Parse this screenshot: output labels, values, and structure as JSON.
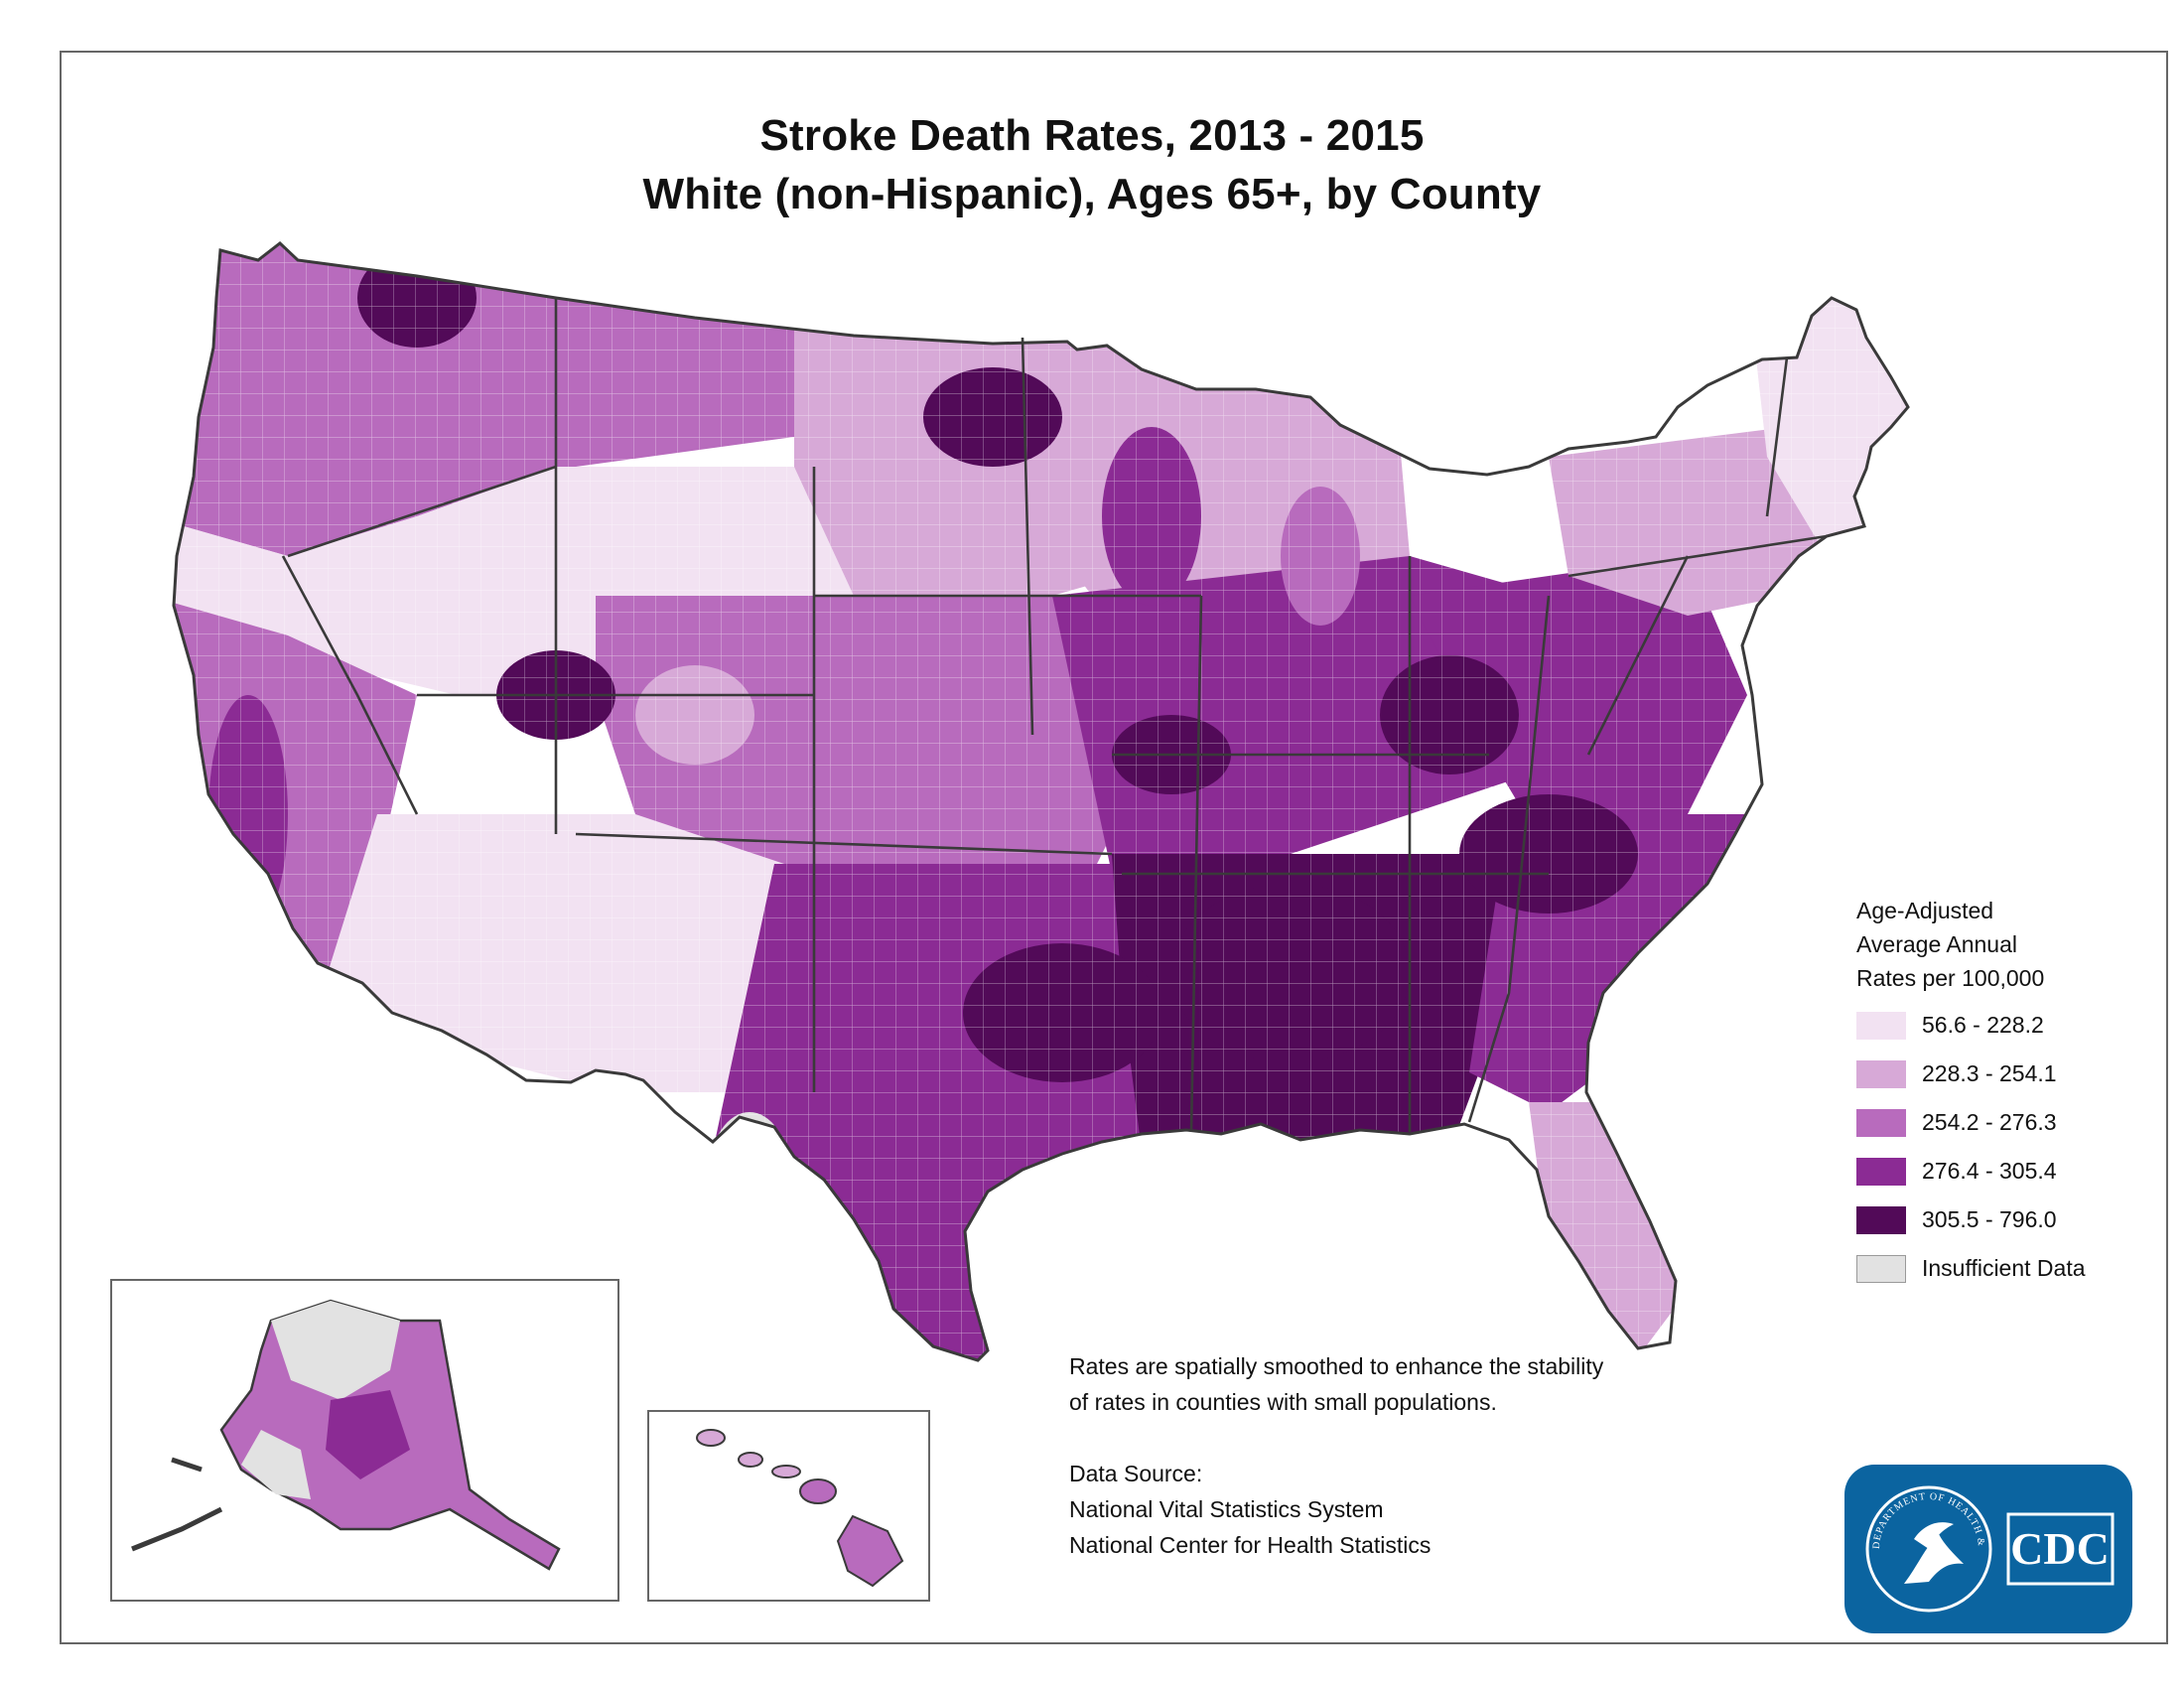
{
  "title": {
    "line1": "Stroke Death Rates, 2013 - 2015",
    "line2": "White (non-Hispanic), Ages 65+, by County"
  },
  "legend": {
    "title_lines": [
      "Age-Adjusted",
      "Average Annual",
      "Rates per 100,000"
    ],
    "classes": [
      {
        "label": "56.6 - 228.2",
        "color": "#f2e2f2"
      },
      {
        "label": "228.3 - 254.1",
        "color": "#d7a9d7"
      },
      {
        "label": "254.2 - 276.3",
        "color": "#b86bbd"
      },
      {
        "label": "276.4 - 305.4",
        "color": "#8b2b94"
      },
      {
        "label": "305.5 - 796.0",
        "color": "#520a58"
      },
      {
        "label": "Insufficient Data",
        "color": "#e2e2e2"
      }
    ]
  },
  "note": {
    "smoothing": "Rates are spatially smoothed to enhance the stability of rates in counties with small populations.",
    "source_label": "Data Source:",
    "source_1": "National Vital Statistics System",
    "source_2": "National Center for Health Statistics"
  },
  "logo": {
    "text": "CDC",
    "seal_text": "DEPARTMENT OF HEALTH & HUMAN SERVICES USA",
    "color": "#0b64a0"
  },
  "map": {
    "outline_color": "#3a3a3a",
    "regions": [
      {
        "name": "pacific-northwest",
        "class": 2
      },
      {
        "name": "northern-rockies",
        "class": 2
      },
      {
        "name": "great-basin",
        "class": 0
      },
      {
        "name": "california",
        "class": 2
      },
      {
        "name": "southwest",
        "class": 0
      },
      {
        "name": "northern-plains",
        "class": 1
      },
      {
        "name": "central-plains",
        "class": 2
      },
      {
        "name": "texas-oklahoma",
        "class": 3
      },
      {
        "name": "upper-midwest",
        "class": 1
      },
      {
        "name": "midwest",
        "class": 3
      },
      {
        "name": "stroke-belt-south",
        "class": 4
      },
      {
        "name": "appalachia",
        "class": 3
      },
      {
        "name": "southeast-atlantic",
        "class": 3
      },
      {
        "name": "florida",
        "class": 1
      },
      {
        "name": "northeast",
        "class": 1
      },
      {
        "name": "new-england",
        "class": 0
      }
    ]
  }
}
